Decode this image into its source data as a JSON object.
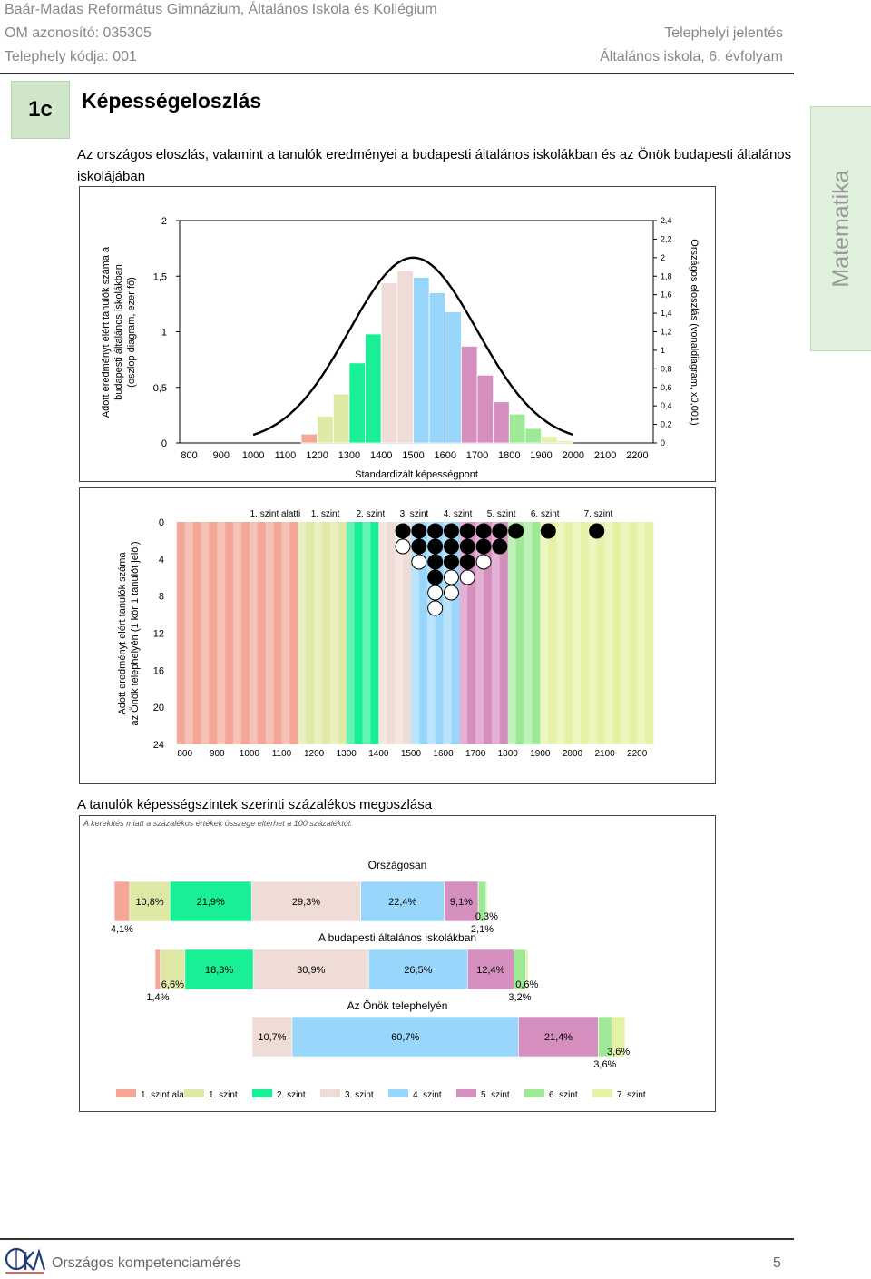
{
  "header": {
    "school": "Baár-Madas Református Gimnázium, Általános Iskola és Kollégium",
    "om_id": "OM azonosító: 035305",
    "site_code": "Telephely kódja: 001",
    "report_type": "Telephelyi jelentés",
    "report_scope": "Általános iskola, 6. évfolyam"
  },
  "section": {
    "number": "1c",
    "title": "Képességeloszlás",
    "intro": "Az országos eloszlás, valamint a tanulók eredményei a budapesti általános iskolákban és az Önök budapesti általános iskolájában",
    "side_tab": "Matematika"
  },
  "chart_data": [
    {
      "type": "bar",
      "title": "",
      "xlabel": "Standardizált képességpont",
      "ylabel": "Adott eredményt elért tanulók száma a budapesti általános iskolákban (oszlop diagram, ezer fő)",
      "y2label": "Országos eloszlás (vonaldiagram, x0,001)",
      "x_ticks": [
        "800",
        "900",
        "1000",
        "1100",
        "1200",
        "1300",
        "1400",
        "1500",
        "1600",
        "1700",
        "1800",
        "1900",
        "2000",
        "2100",
        "2200"
      ],
      "y_ticks": [
        "0",
        "0,5",
        "1",
        "1,5",
        "2"
      ],
      "y2_ticks": [
        "0",
        "0,2",
        "0,4",
        "0,6",
        "0,8",
        "1",
        "1,2",
        "1,4",
        "1,6",
        "1,8",
        "2",
        "2,2",
        "2,4"
      ],
      "ylim": [
        0,
        2
      ],
      "y2lim": [
        0,
        2.4
      ],
      "bin_width": 50,
      "bins": [
        {
          "x": 1150,
          "value": 0.08,
          "level": 0
        },
        {
          "x": 1200,
          "value": 0.24,
          "level": 1
        },
        {
          "x": 1250,
          "value": 0.44,
          "level": 1
        },
        {
          "x": 1300,
          "value": 0.72,
          "level": 2
        },
        {
          "x": 1350,
          "value": 0.98,
          "level": 2
        },
        {
          "x": 1400,
          "value": 1.44,
          "level": 3
        },
        {
          "x": 1450,
          "value": 1.55,
          "level": 3
        },
        {
          "x": 1500,
          "value": 1.49,
          "level": 4
        },
        {
          "x": 1550,
          "value": 1.35,
          "level": 4
        },
        {
          "x": 1600,
          "value": 1.18,
          "level": 4
        },
        {
          "x": 1650,
          "value": 0.87,
          "level": 5
        },
        {
          "x": 1700,
          "value": 0.61,
          "level": 5
        },
        {
          "x": 1750,
          "value": 0.37,
          "level": 5
        },
        {
          "x": 1800,
          "value": 0.26,
          "level": 6
        },
        {
          "x": 1850,
          "value": 0.13,
          "level": 6
        },
        {
          "x": 1900,
          "value": 0.06,
          "level": 7
        },
        {
          "x": 1950,
          "value": 0.02,
          "level": 7
        }
      ],
      "curve": {
        "mean": 1500,
        "sd": 200,
        "peak": 2.0
      }
    },
    {
      "type": "scatter",
      "xlabel": "",
      "ylabel": "Adott eredményt elért tanulók száma az Önök telephelyén (1 kör 1 tanulót jelöl)",
      "x_ticks": [
        "800",
        "900",
        "1000",
        "1100",
        "1200",
        "1300",
        "1400",
        "1500",
        "1600",
        "1700",
        "1800",
        "1900",
        "2000",
        "2100",
        "2200"
      ],
      "y_ticks": [
        "0",
        "4",
        "8",
        "12",
        "16",
        "20",
        "24"
      ],
      "ylim": [
        0,
        24
      ],
      "level_labels": [
        "1. szint alatti",
        "1. szint",
        "2. szint",
        "3. szint",
        "4. szint",
        "5. szint",
        "6. szint",
        "7. szint"
      ],
      "level_label_x": [
        1080,
        1235,
        1375,
        1510,
        1645,
        1780,
        1915,
        2080
      ],
      "points": [
        {
          "x": 1475,
          "filled": 1,
          "open": 1
        },
        {
          "x": 1525,
          "filled": 2,
          "open": 1
        },
        {
          "x": 1575,
          "filled": 4,
          "open": 2
        },
        {
          "x": 1625,
          "filled": 3,
          "open": 2
        },
        {
          "x": 1675,
          "filled": 3,
          "open": 1
        },
        {
          "x": 1725,
          "filled": 2,
          "open": 1
        },
        {
          "x": 1775,
          "filled": 2,
          "open": 0
        },
        {
          "x": 1825,
          "filled": 1,
          "open": 0
        },
        {
          "x": 1925,
          "filled": 1,
          "open": 0
        },
        {
          "x": 2075,
          "filled": 1,
          "open": 0
        }
      ]
    },
    {
      "type": "bar",
      "stacked": true,
      "title": "A tanulók képességszintek szerinti százalékos megoszlása",
      "note": "A kerekítés miatt a százalékos értékek összege eltérhet a 100 százaléktól.",
      "levels": [
        "1. szint alatti",
        "1. szint",
        "2. szint",
        "3. szint",
        "4. szint",
        "5. szint",
        "6. szint",
        "7. szint"
      ],
      "series": [
        {
          "name": "Országosan",
          "values": [
            4.1,
            10.8,
            21.9,
            29.3,
            22.4,
            9.1,
            2.1,
            0.3
          ],
          "labels": [
            "4,1%",
            "10,8%",
            "21,9%",
            "29,3%",
            "22,4%",
            "9,1%",
            "2,1%",
            "0,3%"
          ]
        },
        {
          "name": "A budapesti általános iskolákban",
          "values": [
            1.4,
            6.6,
            18.3,
            30.9,
            26.5,
            12.4,
            3.2,
            0.6
          ],
          "labels": [
            "1,4%",
            "6,6%",
            "18,3%",
            "30,9%",
            "26,5%",
            "12,4%",
            "3,2%",
            "0,6%"
          ]
        },
        {
          "name": "Az Önök telephelyén",
          "values": [
            0,
            0,
            0,
            10.7,
            60.7,
            21.4,
            3.6,
            3.6
          ],
          "labels": [
            "",
            "",
            "",
            "10,7%",
            "60,7%",
            "21,4%",
            "3,6%",
            "3,6%"
          ]
        }
      ]
    }
  ],
  "colors": {
    "levels": [
      "#f4a697",
      "#e0e8a6",
      "#19ef95",
      "#efdcd6",
      "#98d6fb",
      "#d58fbf",
      "#9ee996",
      "#e4f2a6"
    ],
    "levels_light": [
      "#f7c2b6",
      "#e9efc0",
      "#61f4b5",
      "#f4e7e2",
      "#bbe4fc",
      "#e3b1d3",
      "#bff0b9",
      "#edf6c0"
    ]
  },
  "footer": {
    "program": "Országos kompetenciamérés",
    "page": "5",
    "logo_text": "OKM"
  }
}
